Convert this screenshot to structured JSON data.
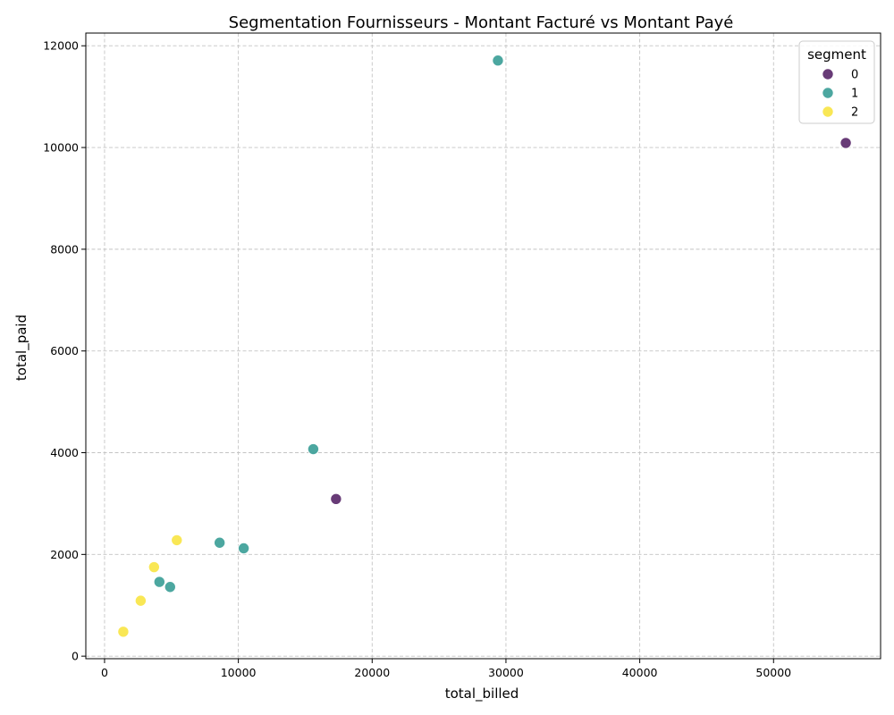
{
  "chart_data": {
    "type": "scatter",
    "title": "Segmentation Fournisseurs - Montant Facturé vs Montant Payé",
    "xlabel": "total_billed",
    "ylabel": "total_paid",
    "xlim": [
      -1400,
      58000
    ],
    "ylim": [
      -50,
      12250
    ],
    "xticks": [
      0,
      10000,
      20000,
      30000,
      40000,
      50000
    ],
    "yticks": [
      0,
      2000,
      4000,
      6000,
      8000,
      10000,
      12000
    ],
    "grid": true,
    "grid_style": "dashed",
    "legend": {
      "title": "segment",
      "placement": "top-right"
    },
    "series": [
      {
        "name": "0",
        "color": "#5b2a6b",
        "points": [
          {
            "x": 55400,
            "y": 10090
          },
          {
            "x": 17300,
            "y": 3090
          }
        ]
      },
      {
        "name": "1",
        "color": "#3d9f98",
        "points": [
          {
            "x": 29400,
            "y": 11710
          },
          {
            "x": 15600,
            "y": 4070
          },
          {
            "x": 8600,
            "y": 2230
          },
          {
            "x": 10400,
            "y": 2120
          },
          {
            "x": 4100,
            "y": 1460
          },
          {
            "x": 4900,
            "y": 1360
          }
        ]
      },
      {
        "name": "2",
        "color": "#f9e547",
        "points": [
          {
            "x": 5400,
            "y": 2280
          },
          {
            "x": 3700,
            "y": 1750
          },
          {
            "x": 2700,
            "y": 1090
          },
          {
            "x": 1400,
            "y": 480
          }
        ]
      }
    ]
  }
}
